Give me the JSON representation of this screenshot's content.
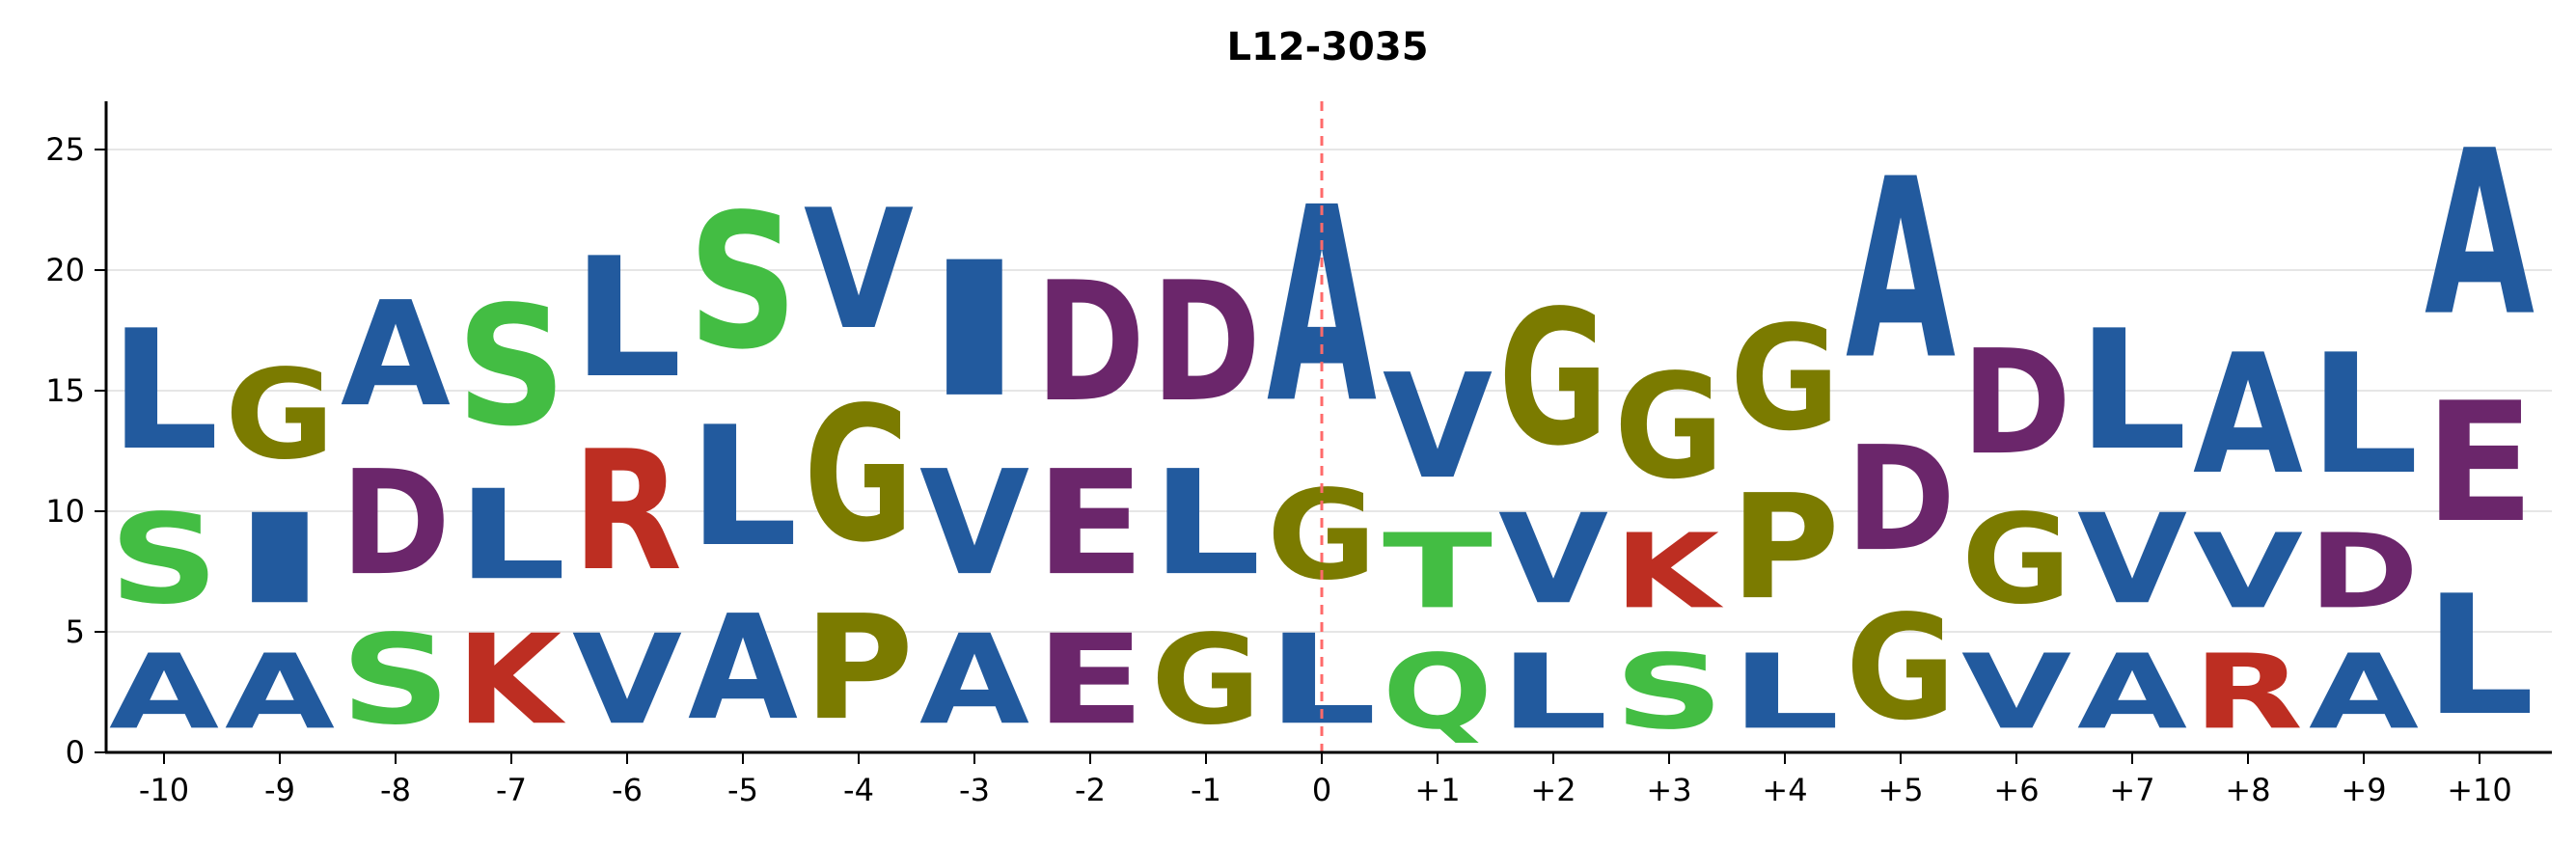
{
  "chart_data": {
    "type": "sequence-logo",
    "title": "L12-3035",
    "xlabel": "",
    "ylabel": "",
    "ylim": [
      0,
      27
    ],
    "yticks": [
      0,
      5,
      10,
      15,
      20,
      25
    ],
    "grid": true,
    "center_line_at": "0",
    "positions": [
      "-10",
      "-9",
      "-8",
      "-7",
      "-6",
      "-5",
      "-4",
      "-3",
      "-2",
      "-1",
      "0",
      "+1",
      "+2",
      "+3",
      "+4",
      "+5",
      "+6",
      "+7",
      "+8",
      "+9",
      "+10"
    ],
    "colors": {
      "A": "#225a9e",
      "L": "#225a9e",
      "I": "#225a9e",
      "V": "#225a9e",
      "G": "#7b7b00",
      "P": "#7b7b00",
      "S": "#43bd43",
      "T": "#43bd43",
      "Q": "#43bd43",
      "D": "#6b266b",
      "E": "#6b266b",
      "K": "#bd2e22",
      "R": "#bd2e22",
      "center_line": "#ff6a6a"
    },
    "columns": [
      {
        "position": "-10",
        "stack": [
          {
            "letter": "A",
            "height": 5
          },
          {
            "letter": "S",
            "height": 6
          },
          {
            "letter": "L",
            "height": 8
          }
        ]
      },
      {
        "position": "-9",
        "stack": [
          {
            "letter": "A",
            "height": 5
          },
          {
            "letter": "I",
            "height": 6
          },
          {
            "letter": "G",
            "height": 6
          }
        ]
      },
      {
        "position": "-8",
        "stack": [
          {
            "letter": "S",
            "height": 6
          },
          {
            "letter": "D",
            "height": 7
          },
          {
            "letter": "A",
            "height": 7
          }
        ]
      },
      {
        "position": "-7",
        "stack": [
          {
            "letter": "K",
            "height": 6
          },
          {
            "letter": "L",
            "height": 6
          },
          {
            "letter": "S",
            "height": 8
          }
        ]
      },
      {
        "position": "-6",
        "stack": [
          {
            "letter": "V",
            "height": 6
          },
          {
            "letter": "R",
            "height": 8
          },
          {
            "letter": "L",
            "height": 8
          }
        ]
      },
      {
        "position": "-5",
        "stack": [
          {
            "letter": "A",
            "height": 7
          },
          {
            "letter": "L",
            "height": 8
          },
          {
            "letter": "S",
            "height": 9
          }
        ]
      },
      {
        "position": "-4",
        "stack": [
          {
            "letter": "P",
            "height": 7
          },
          {
            "letter": "G",
            "height": 9
          },
          {
            "letter": "V",
            "height": 8
          }
        ]
      },
      {
        "position": "-3",
        "stack": [
          {
            "letter": "A",
            "height": 6
          },
          {
            "letter": "V",
            "height": 7
          },
          {
            "letter": "I",
            "height": 9
          }
        ]
      },
      {
        "position": "-2",
        "stack": [
          {
            "letter": "E",
            "height": 6
          },
          {
            "letter": "E",
            "height": 7
          },
          {
            "letter": "D",
            "height": 8
          }
        ]
      },
      {
        "position": "-1",
        "stack": [
          {
            "letter": "G",
            "height": 6
          },
          {
            "letter": "L",
            "height": 7
          },
          {
            "letter": "D",
            "height": 8
          }
        ]
      },
      {
        "position": "0",
        "stack": [
          {
            "letter": "L",
            "height": 6
          },
          {
            "letter": "G",
            "height": 6
          },
          {
            "letter": "A",
            "height": 13
          }
        ]
      },
      {
        "position": "+1",
        "stack": [
          {
            "letter": "Q",
            "height": 5
          },
          {
            "letter": "T",
            "height": 5
          },
          {
            "letter": "V",
            "height": 7
          }
        ]
      },
      {
        "position": "+2",
        "stack": [
          {
            "letter": "L",
            "height": 5
          },
          {
            "letter": "V",
            "height": 6
          },
          {
            "letter": "G",
            "height": 9
          }
        ]
      },
      {
        "position": "+3",
        "stack": [
          {
            "letter": "S",
            "height": 5
          },
          {
            "letter": "K",
            "height": 5
          },
          {
            "letter": "G",
            "height": 7
          }
        ]
      },
      {
        "position": "+4",
        "stack": [
          {
            "letter": "L",
            "height": 5
          },
          {
            "letter": "P",
            "height": 7
          },
          {
            "letter": "G",
            "height": 7
          }
        ]
      },
      {
        "position": "+5",
        "stack": [
          {
            "letter": "G",
            "height": 7
          },
          {
            "letter": "D",
            "height": 7
          },
          {
            "letter": "A",
            "height": 12
          }
        ]
      },
      {
        "position": "+6",
        "stack": [
          {
            "letter": "V",
            "height": 5
          },
          {
            "letter": "G",
            "height": 6
          },
          {
            "letter": "D",
            "height": 7
          }
        ]
      },
      {
        "position": "+7",
        "stack": [
          {
            "letter": "A",
            "height": 5
          },
          {
            "letter": "V",
            "height": 6
          },
          {
            "letter": "L",
            "height": 8
          }
        ]
      },
      {
        "position": "+8",
        "stack": [
          {
            "letter": "R",
            "height": 5
          },
          {
            "letter": "V",
            "height": 5
          },
          {
            "letter": "A",
            "height": 8
          }
        ]
      },
      {
        "position": "+9",
        "stack": [
          {
            "letter": "A",
            "height": 5
          },
          {
            "letter": "D",
            "height": 5
          },
          {
            "letter": "L",
            "height": 8
          }
        ]
      },
      {
        "position": "+10",
        "stack": [
          {
            "letter": "L",
            "height": 8
          },
          {
            "letter": "E",
            "height": 8
          },
          {
            "letter": "A",
            "height": 11
          }
        ]
      }
    ]
  }
}
